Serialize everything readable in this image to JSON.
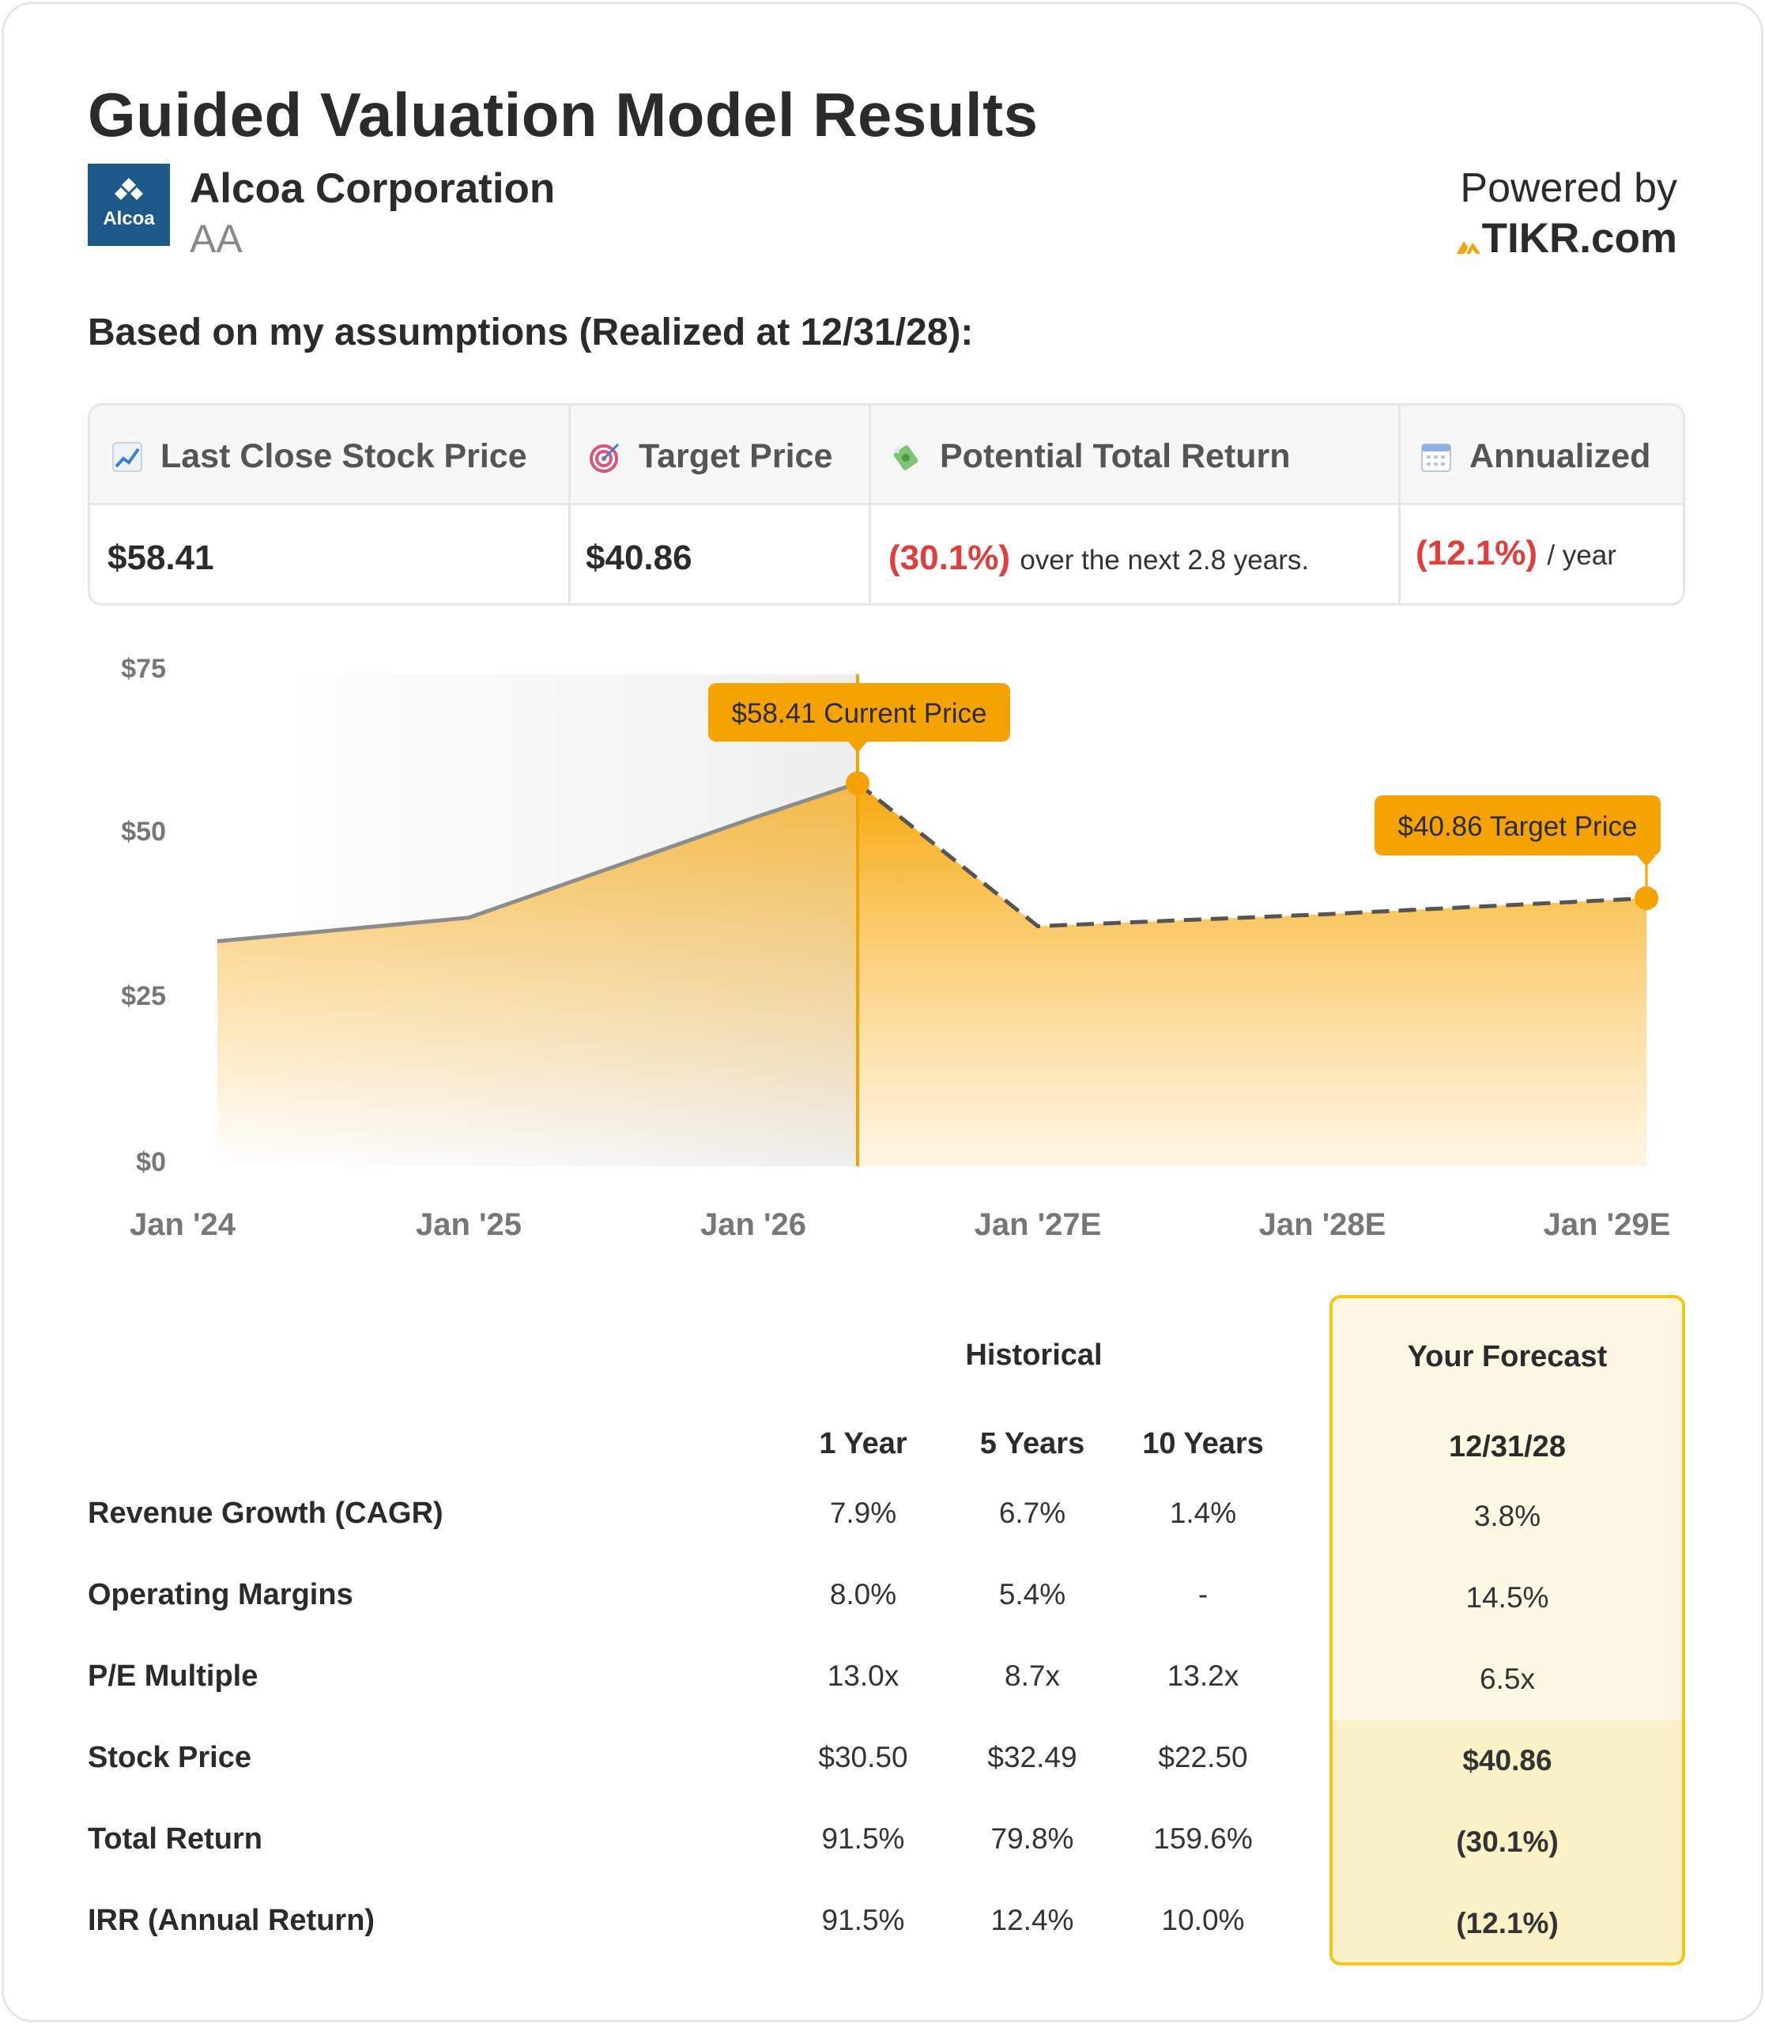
{
  "title": "Guided Valuation Model Results",
  "company": {
    "name": "Alcoa Corporation",
    "ticker": "AA",
    "logo_text": "Alcoa"
  },
  "powered": {
    "label": "Powered by",
    "brand": "TIKR.com"
  },
  "assumption_text": "Based on my assumptions (Realized at 12/31/28):",
  "summary": {
    "last_close_label": "Last Close Stock Price",
    "target_label": "Target Price",
    "return_label": "Potential Total Return",
    "annualized_label": "Annualized",
    "last_close_value": "$58.41",
    "target_value": "$40.86",
    "return_value": "(30.1%)",
    "return_suffix": "over the next 2.8 years.",
    "annualized_value": "(12.1%)",
    "annualized_suffix": "/ year"
  },
  "chart_data": {
    "type": "area",
    "x_labels": [
      "Jan '24",
      "Jan '25",
      "Jan '26",
      "Jan '27E",
      "Jan '28E",
      "Jan '29E"
    ],
    "y_ticks": [
      "$75",
      "$50",
      "$25",
      "$0"
    ],
    "ylim": [
      0,
      75
    ],
    "historical": [
      {
        "x": "Jan '24",
        "y": 34.3
      },
      {
        "x": "Jan '25",
        "y": 37.9
      },
      {
        "x": "Jan '26",
        "y": 53.1
      },
      {
        "x": "current",
        "y": 58.41
      }
    ],
    "forecast": [
      {
        "x": "current",
        "y": 58.41
      },
      {
        "x": "Jan '27E",
        "y": 36.6
      },
      {
        "x": "Jan '28E",
        "y": 38.4
      },
      {
        "x": "Jan '29E",
        "y": 40.86
      }
    ],
    "current_label": "$58.41 Current Price",
    "target_label": "$40.86 Target Price",
    "colors": {
      "accent": "#f5a300",
      "history_line": "#8c8c8c",
      "forecast_line": "#555555"
    }
  },
  "table": {
    "historical_header": "Historical",
    "forecast_header": "Your Forecast",
    "col_headers": [
      "1 Year",
      "5 Years",
      "10 Years"
    ],
    "forecast_date": "12/31/28",
    "rows": [
      {
        "label": "Revenue Growth (CAGR)",
        "v1": "7.9%",
        "v5": "6.7%",
        "v10": "1.4%",
        "f": "3.8%"
      },
      {
        "label": "Operating Margins",
        "v1": "8.0%",
        "v5": "5.4%",
        "v10": "-",
        "f": "14.5%"
      },
      {
        "label": "P/E Multiple",
        "v1": "13.0x",
        "v5": "8.7x",
        "v10": "13.2x",
        "f": "6.5x"
      },
      {
        "label": "Stock Price",
        "v1": "$30.50",
        "v5": "$32.49",
        "v10": "$22.50",
        "f": "$40.86"
      },
      {
        "label": "Total Return",
        "v1": "91.5%",
        "v5": "79.8%",
        "v10": "159.6%",
        "f": "(30.1%)"
      },
      {
        "label": "IRR (Annual Return)",
        "v1": "91.5%",
        "v5": "12.4%",
        "v10": "10.0%",
        "f": "(12.1%)"
      }
    ]
  }
}
